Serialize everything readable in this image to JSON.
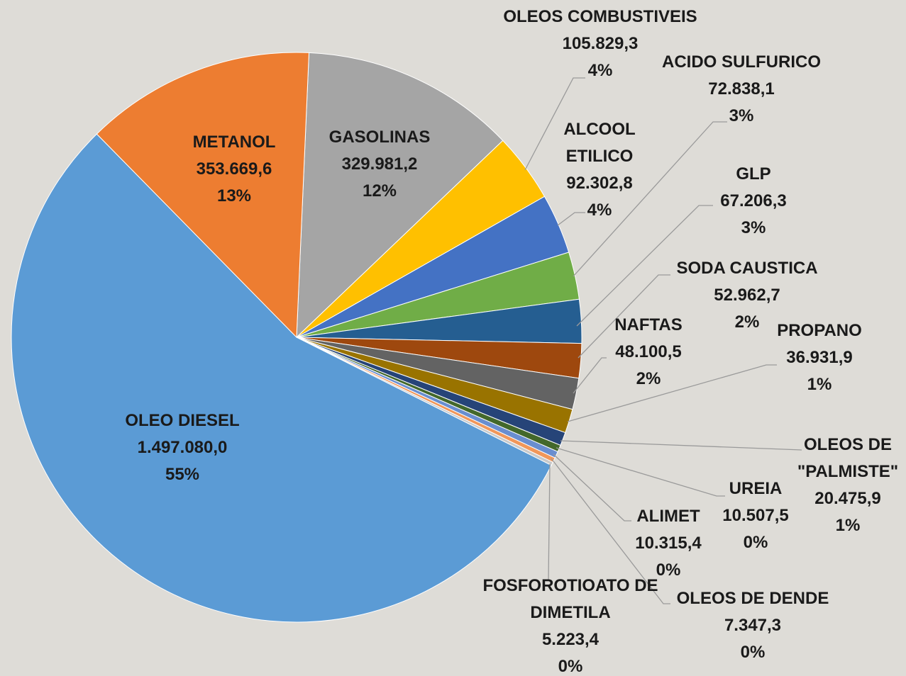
{
  "chart_data": {
    "type": "pie",
    "categories": [
      "GASOLINAS",
      "OLEOS COMBUSTIVEIS",
      "ALCOOL ETILICO",
      "ACIDO SULFURICO",
      "GLP",
      "SODA CAUSTICA",
      "NAFTAS",
      "PROPANO",
      "OLEOS DE \"PALMISTE\"",
      "UREIA",
      "ALIMET",
      "OLEOS DE DENDE",
      "FOSFOROTIOATO DE DIMETILA",
      "OLEO DIESEL",
      "METANOL"
    ],
    "values": [
      329981.2,
      105829.3,
      92302.8,
      72838.1,
      67206.3,
      52962.7,
      48100.5,
      36931.9,
      20475.9,
      10507.5,
      10315.4,
      7347.3,
      5223.4,
      1497080.0,
      353669.6
    ],
    "value_labels": [
      "329.981,2",
      "105.829,3",
      "92.302,8",
      "72.838,1",
      "67.206,3",
      "52.962,7",
      "48.100,5",
      "36.931,9",
      "20.475,9",
      "10.507,5",
      "10.315,4",
      "7.347,3",
      "5.223,4",
      "1.497.080,0",
      "353.669,6"
    ],
    "percent_labels": [
      "12%",
      "4%",
      "4%",
      "3%",
      "3%",
      "2%",
      "2%",
      "1%",
      "1%",
      "0%",
      "0%",
      "0%",
      "0%",
      "55%",
      "13%"
    ],
    "colors": [
      "#a5a5a5",
      "#ffc000",
      "#4472c4",
      "#70ad47",
      "#255e91",
      "#9e480e",
      "#636363",
      "#997300",
      "#264478",
      "#43682b",
      "#698ed0",
      "#f1975a",
      "#c9c9c9",
      "#5b9bd5",
      "#ed7d31"
    ]
  }
}
